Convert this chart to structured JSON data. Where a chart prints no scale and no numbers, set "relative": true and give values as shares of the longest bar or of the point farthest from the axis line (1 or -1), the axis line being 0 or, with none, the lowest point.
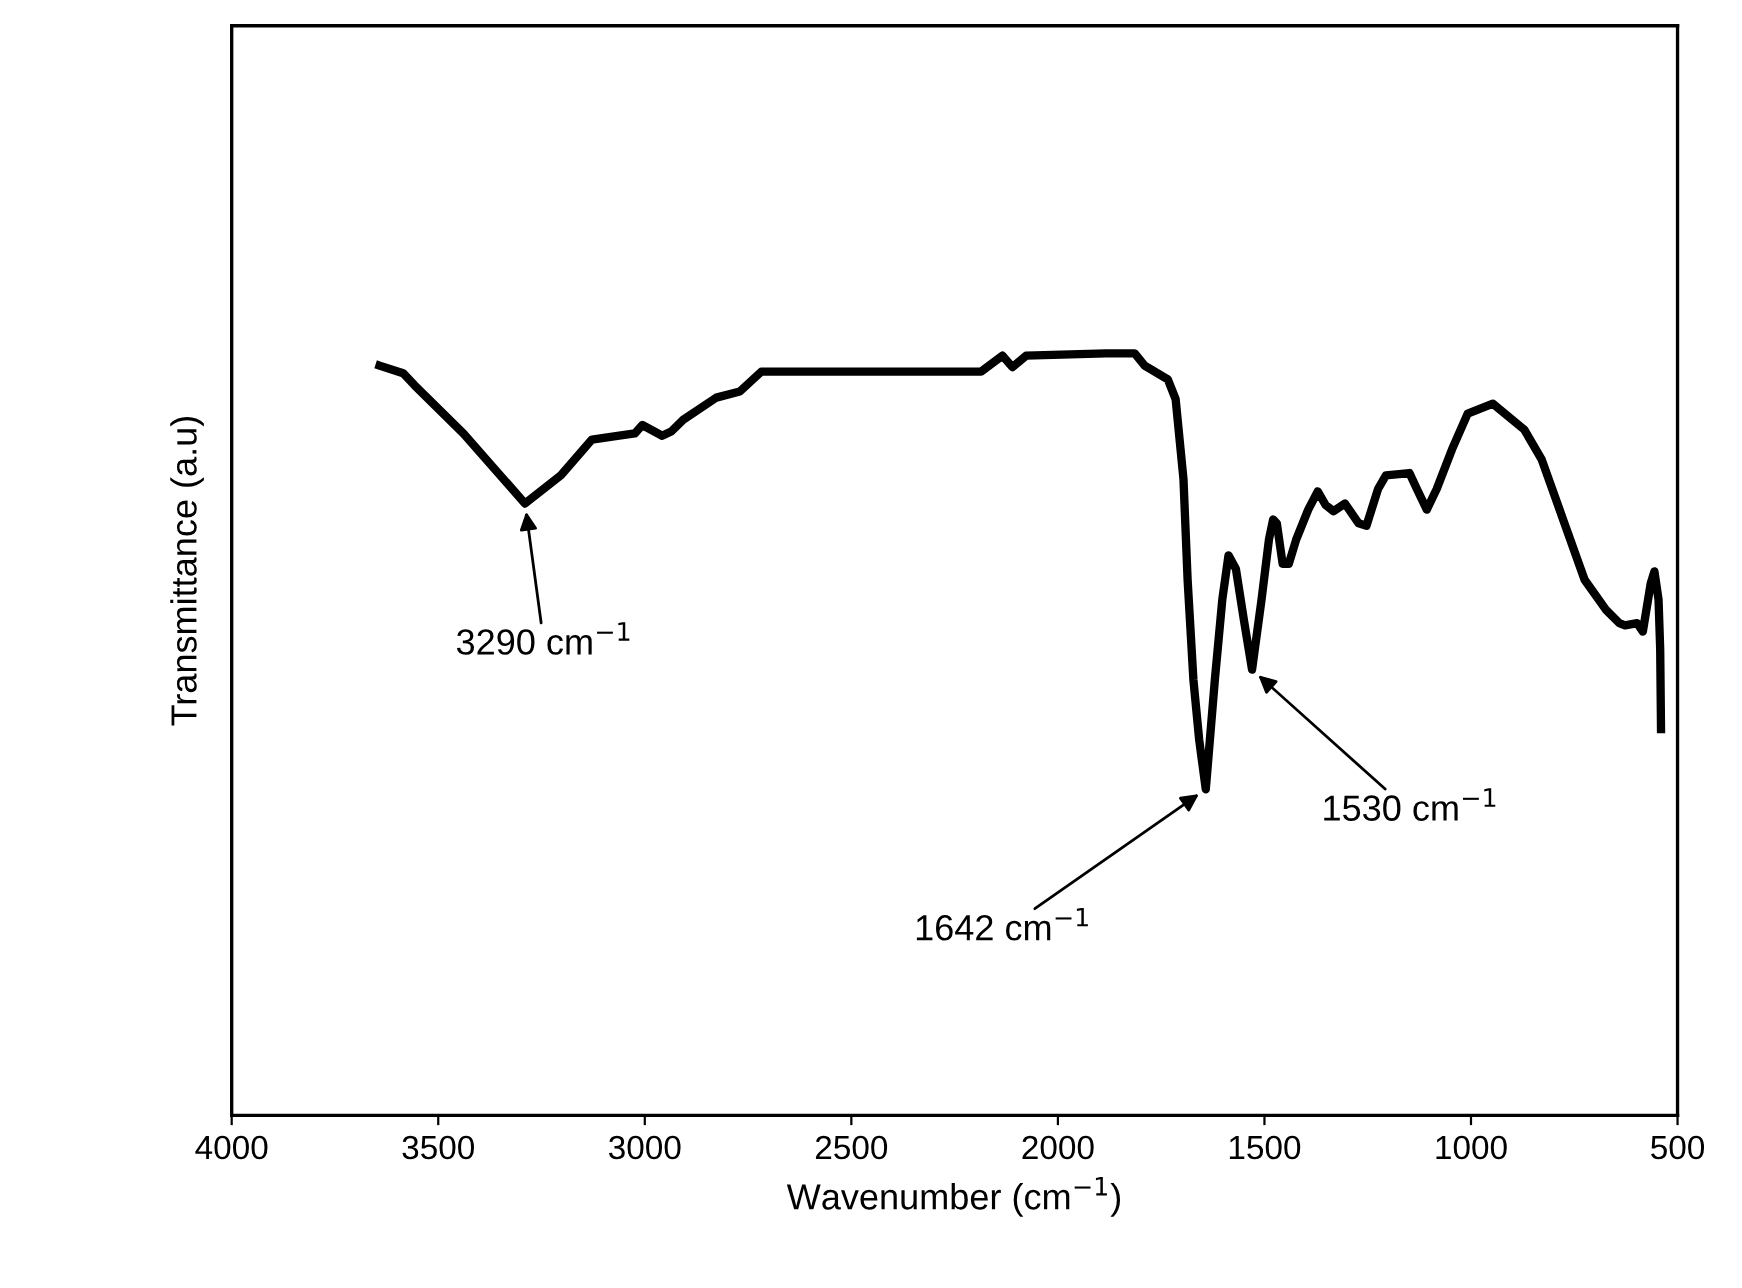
{
  "chart_data": {
    "type": "line",
    "relative": true,
    "xlabel": "Wavenumber (cm$^{−1}$)",
    "ylabel": "Transmittance (a.u)",
    "xlim": [
      4000,
      500
    ],
    "xticks": [
      4000,
      3500,
      3000,
      2500,
      2000,
      1500,
      1000,
      500
    ],
    "tick_labels": "x",
    "grid": false,
    "legend": false,
    "marker": "none",
    "line_style": "solid",
    "series": [
      {
        "color": "#000000",
        "x": [
          3642,
          3585,
          3557,
          3439,
          3290,
          3203,
          3128,
          3062,
          3024,
          3006,
          2958,
          2935,
          2907,
          2827,
          2770,
          2718,
          2186,
          2134,
          2110,
          2077,
          1884,
          1814,
          1790,
          1734,
          1715,
          1696,
          1686,
          1672,
          1658,
          1642,
          1620,
          1602,
          1587,
          1569,
          1550,
          1530,
          1507,
          1489,
          1479,
          1470,
          1456,
          1441,
          1423,
          1394,
          1371,
          1352,
          1333,
          1305,
          1272,
          1253,
          1225,
          1206,
          1149,
          1131,
          1107,
          1083,
          1046,
          1008,
          947,
          871,
          829,
          777,
          725,
          674,
          641,
          627,
          598,
          584,
          565,
          556,
          546,
          542,
          540
        ],
        "values": [
          0.984,
          0.974,
          0.958,
          0.895,
          0.803,
          0.84,
          0.887,
          0.892,
          0.895,
          0.906,
          0.892,
          0.898,
          0.913,
          0.942,
          0.95,
          0.976,
          0.976,
          0.997,
          0.982,
          0.997,
          1.0,
          1.0,
          0.984,
          0.966,
          0.94,
          0.835,
          0.703,
          0.572,
          0.493,
          0.428,
          0.572,
          0.677,
          0.735,
          0.717,
          0.651,
          0.585,
          0.677,
          0.756,
          0.782,
          0.777,
          0.724,
          0.724,
          0.756,
          0.795,
          0.819,
          0.801,
          0.793,
          0.803,
          0.777,
          0.774,
          0.822,
          0.84,
          0.843,
          0.822,
          0.795,
          0.822,
          0.874,
          0.921,
          0.934,
          0.9,
          0.861,
          0.782,
          0.703,
          0.664,
          0.646,
          0.643,
          0.646,
          0.635,
          0.698,
          0.714,
          0.677,
          0.612,
          0.507
        ]
      }
    ],
    "annotations": [
      {
        "text": "3290 cm$^{−1}$",
        "x": 3290,
        "y": 0.803
      },
      {
        "text": "1642 cm$^{−1}$",
        "x": 1642,
        "y": 0.428
      },
      {
        "text": "1530 cm$^{−1}$",
        "x": 1530,
        "y": 0.585
      }
    ]
  }
}
